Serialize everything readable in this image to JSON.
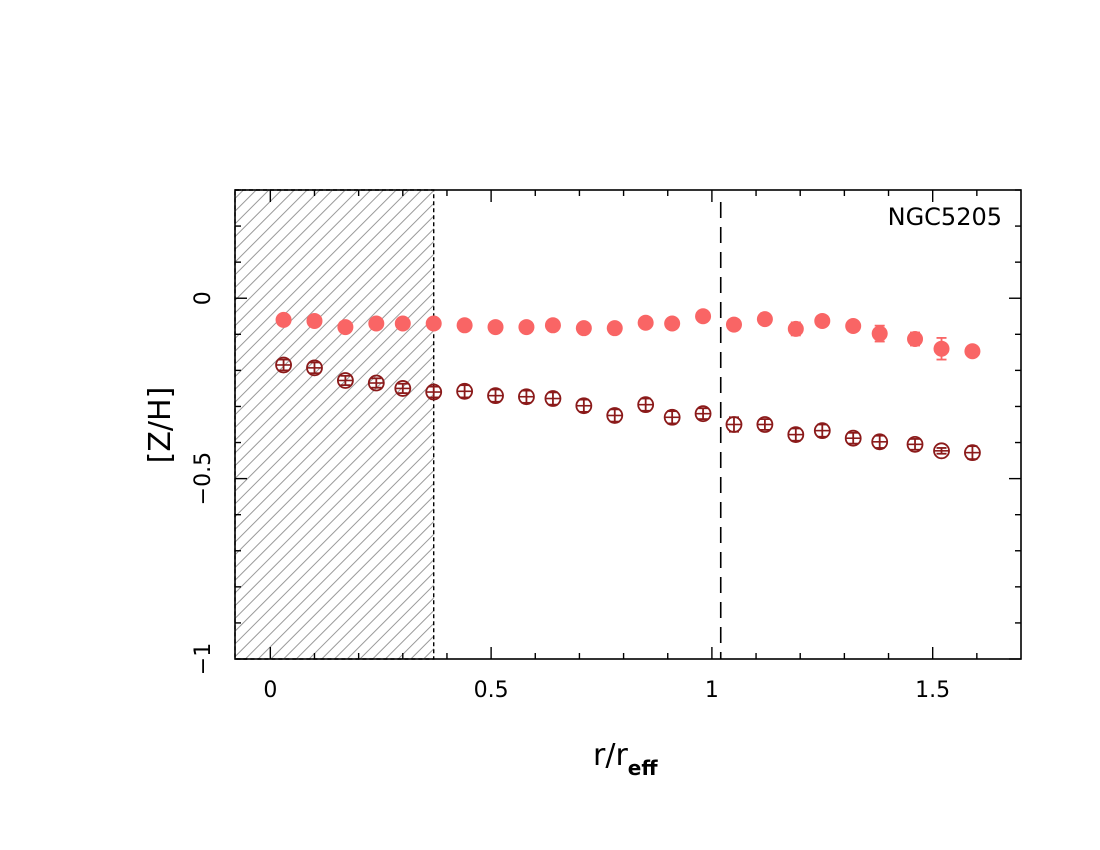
{
  "chart_data": {
    "type": "scatter",
    "annotation": "NGC5205",
    "xlabel": {
      "main": "r/r",
      "sub": "eff"
    },
    "ylabel": "[Z/H]",
    "xlim": [
      -0.08,
      1.7
    ],
    "ylim": [
      -1.0,
      0.3
    ],
    "x_ticks": [
      "0",
      "0.5",
      "1",
      "1.5"
    ],
    "y_ticks": [
      "0",
      "−0.5",
      "−1"
    ],
    "shaded_region": {
      "x_from": -0.08,
      "x_to": 0.37
    },
    "vertical_line_x": 1.02,
    "colors": {
      "filled": "#f96565",
      "open": "#8b1a1a",
      "hatch": "#9a9a9a"
    },
    "series": [
      {
        "marker": "filled-circle",
        "points": [
          {
            "x": 0.03,
            "y": -0.06,
            "err": 0.005
          },
          {
            "x": 0.1,
            "y": -0.063,
            "err": 0.005
          },
          {
            "x": 0.17,
            "y": -0.08,
            "err": 0.005
          },
          {
            "x": 0.24,
            "y": -0.07,
            "err": 0.005
          },
          {
            "x": 0.3,
            "y": -0.07,
            "err": 0.005
          },
          {
            "x": 0.37,
            "y": -0.07,
            "err": 0.005
          },
          {
            "x": 0.44,
            "y": -0.075,
            "err": 0.005
          },
          {
            "x": 0.51,
            "y": -0.08,
            "err": 0.005
          },
          {
            "x": 0.58,
            "y": -0.08,
            "err": 0.005
          },
          {
            "x": 0.64,
            "y": -0.075,
            "err": 0.005
          },
          {
            "x": 0.71,
            "y": -0.083,
            "err": 0.005
          },
          {
            "x": 0.78,
            "y": -0.083,
            "err": 0.005
          },
          {
            "x": 0.85,
            "y": -0.068,
            "err": 0.005
          },
          {
            "x": 0.91,
            "y": -0.07,
            "err": 0.005
          },
          {
            "x": 0.98,
            "y": -0.05,
            "err": 0.005
          },
          {
            "x": 1.05,
            "y": -0.073,
            "err": 0.005
          },
          {
            "x": 1.12,
            "y": -0.058,
            "err": 0.005
          },
          {
            "x": 1.19,
            "y": -0.085,
            "err": 0.018
          },
          {
            "x": 1.25,
            "y": -0.063,
            "err": 0.008
          },
          {
            "x": 1.32,
            "y": -0.077,
            "err": 0.01
          },
          {
            "x": 1.38,
            "y": -0.098,
            "err": 0.022
          },
          {
            "x": 1.46,
            "y": -0.113,
            "err": 0.018
          },
          {
            "x": 1.52,
            "y": -0.14,
            "err": 0.03
          },
          {
            "x": 1.59,
            "y": -0.147,
            "err": 0.013
          }
        ]
      },
      {
        "marker": "open-circle",
        "points": [
          {
            "x": 0.03,
            "y": -0.185,
            "err": 0.015
          },
          {
            "x": 0.1,
            "y": -0.193,
            "err": 0.015
          },
          {
            "x": 0.17,
            "y": -0.228,
            "err": 0.013
          },
          {
            "x": 0.24,
            "y": -0.235,
            "err": 0.013
          },
          {
            "x": 0.3,
            "y": -0.25,
            "err": 0.013
          },
          {
            "x": 0.37,
            "y": -0.26,
            "err": 0.015
          },
          {
            "x": 0.44,
            "y": -0.258,
            "err": 0.017
          },
          {
            "x": 0.51,
            "y": -0.27,
            "err": 0.017
          },
          {
            "x": 0.58,
            "y": -0.273,
            "err": 0.017
          },
          {
            "x": 0.64,
            "y": -0.278,
            "err": 0.017
          },
          {
            "x": 0.71,
            "y": -0.298,
            "err": 0.017
          },
          {
            "x": 0.78,
            "y": -0.325,
            "err": 0.017
          },
          {
            "x": 0.85,
            "y": -0.295,
            "err": 0.017
          },
          {
            "x": 0.91,
            "y": -0.33,
            "err": 0.017
          },
          {
            "x": 0.98,
            "y": -0.32,
            "err": 0.015
          },
          {
            "x": 1.05,
            "y": -0.35,
            "err": 0.02
          },
          {
            "x": 1.12,
            "y": -0.35,
            "err": 0.015
          },
          {
            "x": 1.19,
            "y": -0.378,
            "err": 0.017
          },
          {
            "x": 1.25,
            "y": -0.367,
            "err": 0.017
          },
          {
            "x": 1.32,
            "y": -0.388,
            "err": 0.015
          },
          {
            "x": 1.38,
            "y": -0.398,
            "err": 0.017
          },
          {
            "x": 1.46,
            "y": -0.405,
            "err": 0.015
          },
          {
            "x": 1.52,
            "y": -0.423,
            "err": 0.008
          },
          {
            "x": 1.59,
            "y": -0.428,
            "err": 0.018
          }
        ]
      }
    ]
  }
}
